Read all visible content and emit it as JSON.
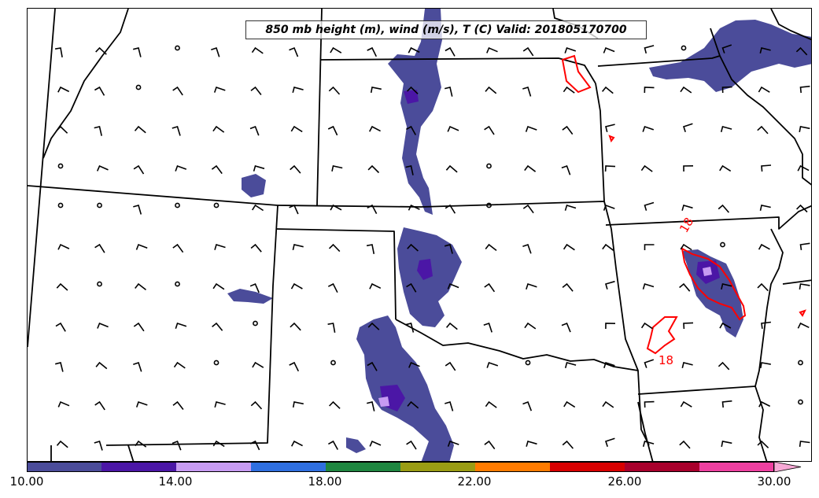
{
  "title": "850 mb height (m), wind (m/s), T (C) Valid: 201805170700",
  "contour_labels": [
    {
      "text": "18",
      "color": "#ff0000"
    },
    {
      "text": "18",
      "color": "#ff0000"
    }
  ],
  "colorbar": {
    "min": 10.0,
    "max": 30.0,
    "tick_labels": [
      "10.00",
      "14.00",
      "18.00",
      "22.00",
      "26.00",
      "30.00"
    ],
    "ticks": [
      10,
      14,
      18,
      22,
      26,
      30
    ],
    "segments": [
      {
        "from": 10,
        "to": 12,
        "color": "#4b4c9a"
      },
      {
        "from": 12,
        "to": 14,
        "color": "#4b16a6"
      },
      {
        "from": 14,
        "to": 16,
        "color": "#c79bf2"
      },
      {
        "from": 16,
        "to": 18,
        "color": "#2f6fdf"
      },
      {
        "from": 18,
        "to": 20,
        "color": "#1f8640"
      },
      {
        "from": 20,
        "to": 22,
        "color": "#9a9c14"
      },
      {
        "from": 22,
        "to": 24,
        "color": "#ff7b00"
      },
      {
        "from": 24,
        "to": 26,
        "color": "#d70000"
      },
      {
        "from": 26,
        "to": 28,
        "color": "#a8002c"
      },
      {
        "from": 28,
        "to": 30,
        "color": "#ee40a0"
      }
    ],
    "extend_color": "#f7a9d6"
  },
  "colors": {
    "state_borders": "#000000",
    "temperature_contour": "#ff0000",
    "wind_barbs": "#000000"
  }
}
